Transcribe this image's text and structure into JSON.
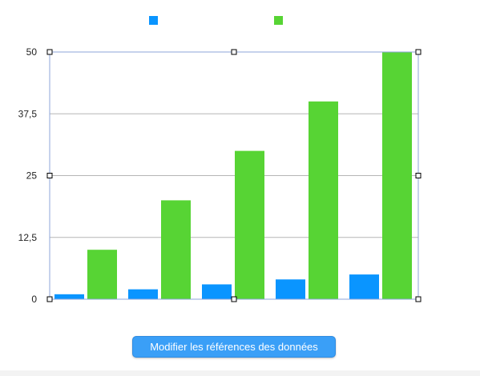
{
  "colors": {
    "series_blue": "#0a95ff",
    "series_green": "#57d434",
    "grid": "#b5b5b5",
    "selection": "#8ea6d8",
    "button_bg": "#3a9ff7"
  },
  "legend": [
    {
      "color": "#0a95ff",
      "label": ""
    },
    {
      "color": "#57d434",
      "label": ""
    }
  ],
  "button": {
    "label": "Modifier les références des données"
  },
  "chart_data": {
    "type": "bar",
    "categories": [
      "",
      "",
      "",
      "",
      ""
    ],
    "series": [
      {
        "values": [
          1,
          2,
          3,
          4,
          5
        ]
      },
      {
        "values": [
          10,
          20,
          30,
          40,
          50
        ]
      }
    ],
    "ylim": [
      0,
      50
    ],
    "yticks": [
      "0",
      "12,5",
      "25",
      "37,5",
      "50"
    ],
    "ytick_values": [
      0,
      12.5,
      25,
      37.5,
      50
    ],
    "grid": true,
    "legend_position": "top",
    "title": "",
    "xlabel": "",
    "ylabel": ""
  }
}
